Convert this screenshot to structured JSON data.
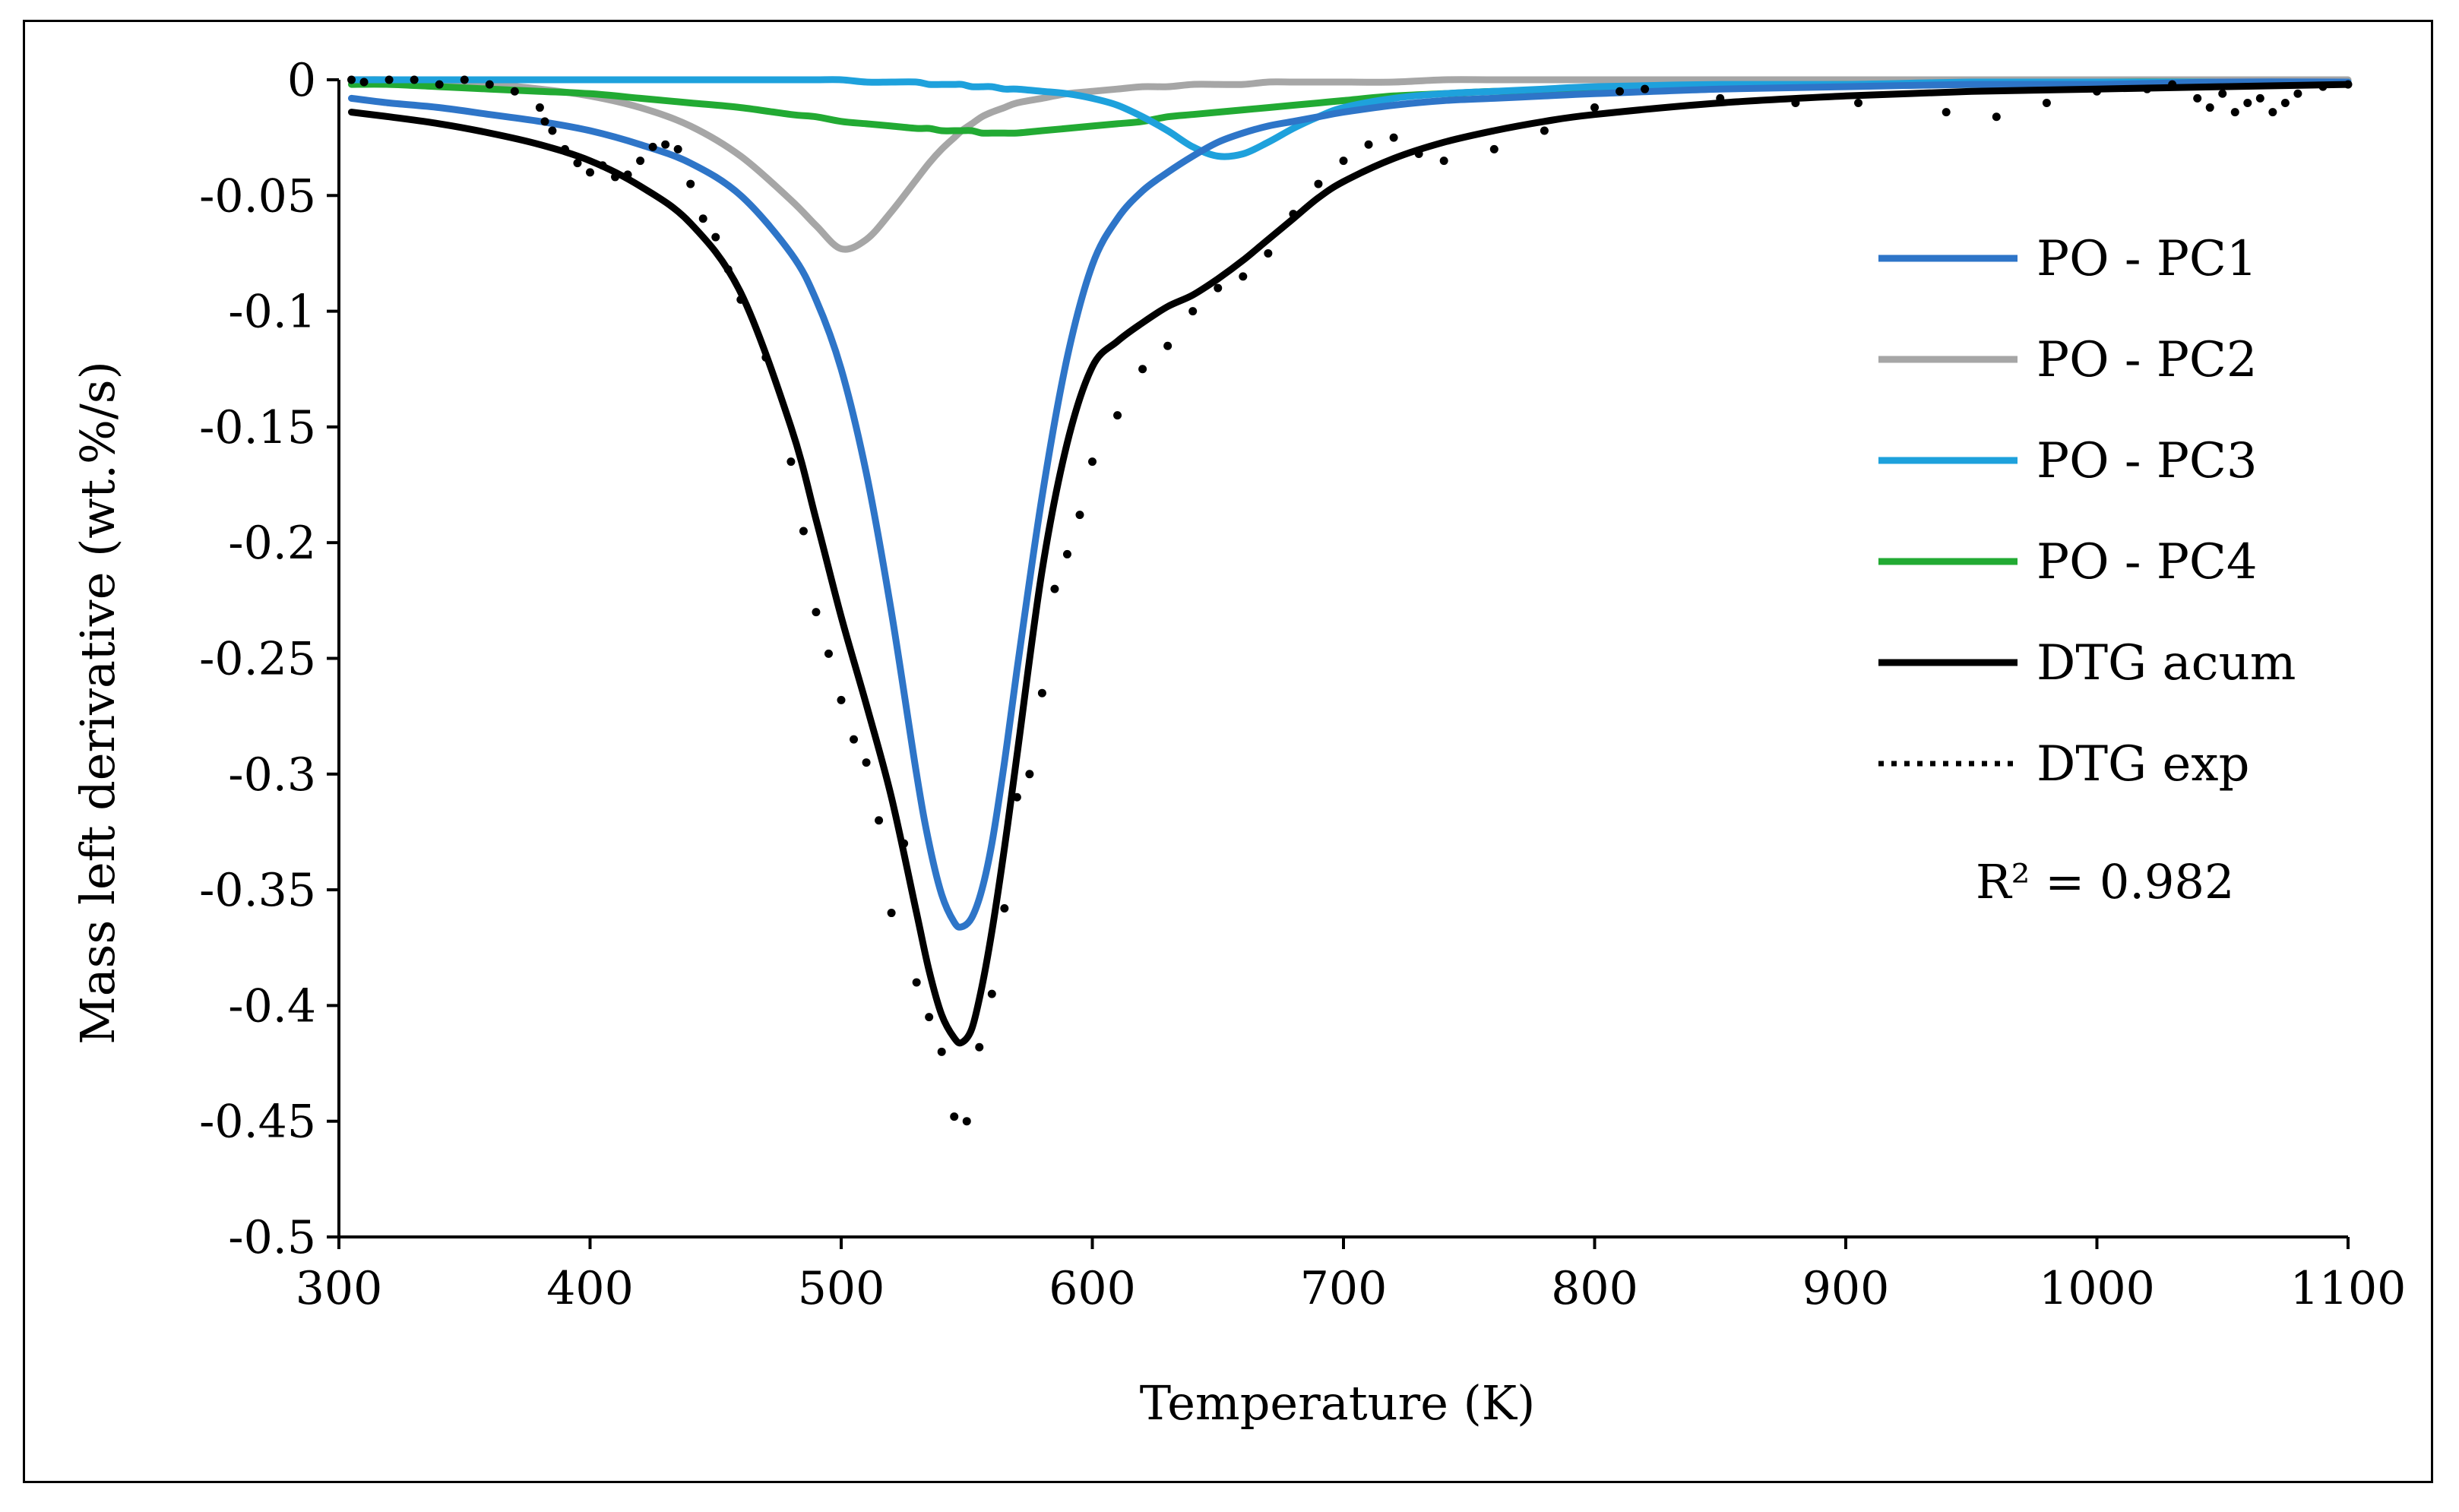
{
  "chart_data": {
    "type": "line",
    "title": "",
    "xlabel": "Temperature (K)",
    "ylabel": "Mass left derivative (wt.%/s)",
    "xlim": [
      300,
      1100
    ],
    "ylim": [
      -0.5,
      0
    ],
    "xticks": [
      300,
      400,
      500,
      600,
      700,
      800,
      900,
      1000,
      1100
    ],
    "xtick_labels": [
      "300",
      "400",
      "500",
      "600",
      "700",
      "800",
      "900",
      "1000",
      "1100"
    ],
    "yticks": [
      0,
      -0.05,
      -0.1,
      -0.15,
      -0.2,
      -0.25,
      -0.3,
      -0.35,
      -0.4,
      -0.45,
      -0.5
    ],
    "ytick_labels": [
      "0",
      "-0.05",
      "-0.1",
      "-0.15",
      "-0.2",
      "-0.25",
      "-0.3",
      "-0.35",
      "-0.4",
      "-0.45",
      "-0.5"
    ],
    "grid": false,
    "legend_position": "right",
    "annotation": "R² = 0.982",
    "x": [
      305,
      320,
      340,
      360,
      380,
      400,
      420,
      440,
      460,
      480,
      490,
      500,
      510,
      520,
      530,
      535,
      540,
      545,
      548,
      552,
      556,
      560,
      565,
      570,
      580,
      590,
      600,
      610,
      620,
      630,
      640,
      650,
      660,
      670,
      680,
      690,
      700,
      720,
      740,
      760,
      780,
      800,
      850,
      900,
      950,
      1000,
      1050,
      1100
    ],
    "series": [
      {
        "name": "PO - PC1",
        "color": "#2e75c8",
        "style": "solid",
        "values": [
          -0.008,
          -0.01,
          -0.012,
          -0.015,
          -0.018,
          -0.022,
          -0.028,
          -0.036,
          -0.05,
          -0.075,
          -0.095,
          -0.125,
          -0.17,
          -0.23,
          -0.3,
          -0.33,
          -0.352,
          -0.364,
          -0.366,
          -0.362,
          -0.35,
          -0.33,
          -0.295,
          -0.255,
          -0.18,
          -0.12,
          -0.08,
          -0.06,
          -0.048,
          -0.04,
          -0.033,
          -0.027,
          -0.023,
          -0.02,
          -0.018,
          -0.016,
          -0.014,
          -0.011,
          -0.009,
          -0.008,
          -0.007,
          -0.006,
          -0.004,
          -0.003,
          -0.002,
          -0.002,
          -0.001,
          -0.001
        ]
      },
      {
        "name": "PO - PC2",
        "color": "#a6a6a6",
        "style": "solid",
        "values": [
          0,
          0,
          -0.001,
          -0.002,
          -0.004,
          -0.007,
          -0.012,
          -0.02,
          -0.033,
          -0.052,
          -0.063,
          -0.073,
          -0.069,
          -0.057,
          -0.043,
          -0.036,
          -0.03,
          -0.025,
          -0.022,
          -0.019,
          -0.016,
          -0.014,
          -0.012,
          -0.01,
          -0.008,
          -0.006,
          -0.005,
          -0.004,
          -0.003,
          -0.003,
          -0.002,
          -0.002,
          -0.002,
          -0.001,
          -0.001,
          -0.001,
          -0.001,
          -0.001,
          0,
          0,
          0,
          0,
          0,
          0,
          0,
          0,
          0,
          0
        ]
      },
      {
        "name": "PO - PC3",
        "color": "#1ea1dc",
        "style": "solid",
        "values": [
          0,
          0,
          0,
          0,
          0,
          0,
          0,
          0,
          0,
          0,
          0,
          0,
          -0.001,
          -0.001,
          -0.001,
          -0.002,
          -0.002,
          -0.002,
          -0.002,
          -0.003,
          -0.003,
          -0.003,
          -0.004,
          -0.004,
          -0.005,
          -0.006,
          -0.008,
          -0.011,
          -0.016,
          -0.022,
          -0.029,
          -0.033,
          -0.032,
          -0.027,
          -0.021,
          -0.016,
          -0.012,
          -0.008,
          -0.006,
          -0.005,
          -0.004,
          -0.003,
          -0.002,
          -0.002,
          -0.001,
          -0.001,
          -0.001,
          -0.001
        ]
      },
      {
        "name": "PO - PC4",
        "color": "#22aa33",
        "style": "solid",
        "values": [
          -0.002,
          -0.002,
          -0.003,
          -0.004,
          -0.005,
          -0.006,
          -0.008,
          -0.01,
          -0.012,
          -0.015,
          -0.016,
          -0.018,
          -0.019,
          -0.02,
          -0.021,
          -0.021,
          -0.022,
          -0.022,
          -0.022,
          -0.022,
          -0.023,
          -0.023,
          -0.023,
          -0.023,
          -0.022,
          -0.021,
          -0.02,
          -0.019,
          -0.018,
          -0.016,
          -0.015,
          -0.014,
          -0.013,
          -0.012,
          -0.011,
          -0.01,
          -0.009,
          -0.007,
          -0.006,
          -0.005,
          -0.005,
          -0.004,
          -0.003,
          -0.002,
          -0.002,
          -0.001,
          -0.001,
          -0.001
        ]
      },
      {
        "name": "DTG acum",
        "color": "#000000",
        "style": "solid",
        "values": [
          -0.014,
          -0.016,
          -0.019,
          -0.023,
          -0.028,
          -0.035,
          -0.046,
          -0.062,
          -0.092,
          -0.15,
          -0.19,
          -0.232,
          -0.27,
          -0.31,
          -0.36,
          -0.385,
          -0.404,
          -0.414,
          -0.416,
          -0.41,
          -0.392,
          -0.368,
          -0.332,
          -0.292,
          -0.212,
          -0.157,
          -0.124,
          -0.113,
          -0.105,
          -0.098,
          -0.093,
          -0.086,
          -0.078,
          -0.069,
          -0.06,
          -0.051,
          -0.044,
          -0.034,
          -0.027,
          -0.022,
          -0.018,
          -0.015,
          -0.01,
          -0.007,
          -0.005,
          -0.004,
          -0.003,
          -0.002
        ]
      },
      {
        "name": "DTG exp",
        "color": "#000000",
        "style": "dotted",
        "x": [
          305,
          310,
          320,
          330,
          340,
          350,
          360,
          370,
          380,
          382,
          385,
          390,
          395,
          400,
          405,
          410,
          415,
          420,
          425,
          430,
          435,
          440,
          445,
          450,
          455,
          460,
          470,
          480,
          485,
          490,
          495,
          500,
          505,
          510,
          515,
          520,
          525,
          530,
          535,
          540,
          545,
          550,
          555,
          560,
          565,
          570,
          575,
          580,
          585,
          590,
          595,
          600,
          610,
          620,
          630,
          640,
          650,
          660,
          670,
          680,
          690,
          700,
          710,
          720,
          730,
          740,
          760,
          780,
          800,
          810,
          820,
          850,
          880,
          905,
          940,
          960,
          980,
          1000,
          1020,
          1030,
          1040,
          1045,
          1050,
          1055,
          1060,
          1065,
          1070,
          1075,
          1080,
          1090,
          1100
        ],
        "values": [
          0,
          -0.001,
          0,
          0,
          -0.002,
          0,
          -0.002,
          -0.005,
          -0.012,
          -0.018,
          -0.022,
          -0.03,
          -0.036,
          -0.04,
          -0.037,
          -0.042,
          -0.041,
          -0.035,
          -0.029,
          -0.028,
          -0.03,
          -0.045,
          -0.06,
          -0.068,
          -0.082,
          -0.095,
          -0.12,
          -0.165,
          -0.195,
          -0.23,
          -0.248,
          -0.268,
          -0.285,
          -0.295,
          -0.32,
          -0.36,
          -0.33,
          -0.39,
          -0.405,
          -0.42,
          -0.448,
          -0.45,
          -0.418,
          -0.395,
          -0.358,
          -0.31,
          -0.3,
          -0.265,
          -0.22,
          -0.205,
          -0.188,
          -0.165,
          -0.145,
          -0.125,
          -0.115,
          -0.1,
          -0.09,
          -0.085,
          -0.075,
          -0.058,
          -0.045,
          -0.035,
          -0.028,
          -0.025,
          -0.032,
          -0.035,
          -0.03,
          -0.022,
          -0.012,
          -0.005,
          -0.004,
          -0.008,
          -0.01,
          -0.01,
          -0.014,
          -0.016,
          -0.01,
          -0.005,
          -0.004,
          -0.002,
          -0.008,
          -0.012,
          -0.006,
          -0.014,
          -0.01,
          -0.008,
          -0.014,
          -0.01,
          -0.006,
          -0.003,
          -0.002
        ]
      }
    ]
  }
}
